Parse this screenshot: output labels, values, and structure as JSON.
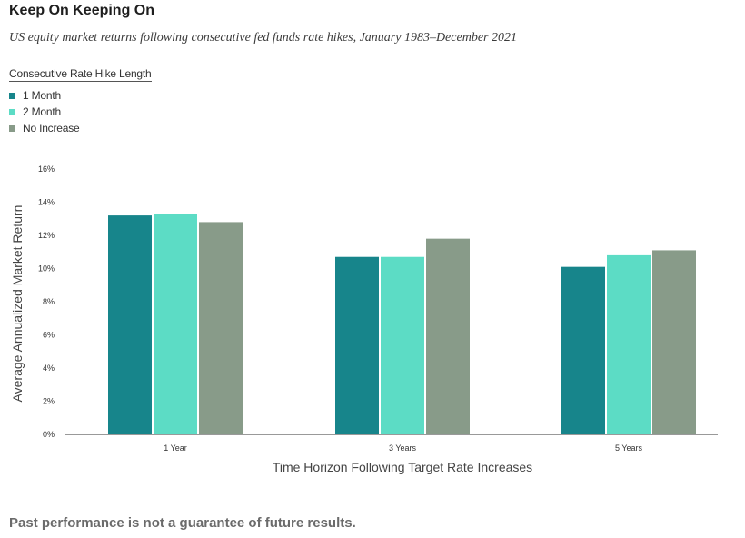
{
  "header": {
    "title": "Keep On Keeping On",
    "subtitle": "US equity market returns following consecutive fed funds rate hikes, January 1983–December 2021"
  },
  "footer": {
    "note": "Past performance is not a guarantee of future results."
  },
  "chart_data": {
    "type": "bar",
    "legend_title": "Consecutive Rate Hike Length",
    "legend_position": "top-left",
    "categories": [
      "1 Year",
      "3 Years",
      "5 Years"
    ],
    "series": [
      {
        "name": "1 Month",
        "color": "#17858b",
        "values": [
          13.2,
          10.7,
          10.1
        ]
      },
      {
        "name": "2 Month",
        "color": "#5cdcc5",
        "values": [
          13.3,
          10.7,
          10.8
        ]
      },
      {
        "name": "No Increase",
        "color": "#889b89",
        "values": [
          12.8,
          11.8,
          11.1
        ]
      }
    ],
    "xlabel": "Time Horizon Following Target Rate Increases",
    "ylabel": "Average Annualized Market Return",
    "ylim": [
      0,
      16
    ],
    "yticks": [
      0,
      2,
      4,
      6,
      8,
      10,
      12,
      14,
      16
    ],
    "ytick_labels": [
      "0%",
      "2%",
      "4%",
      "6%",
      "8%",
      "10%",
      "12%",
      "14%",
      "16%"
    ],
    "grid": false
  }
}
